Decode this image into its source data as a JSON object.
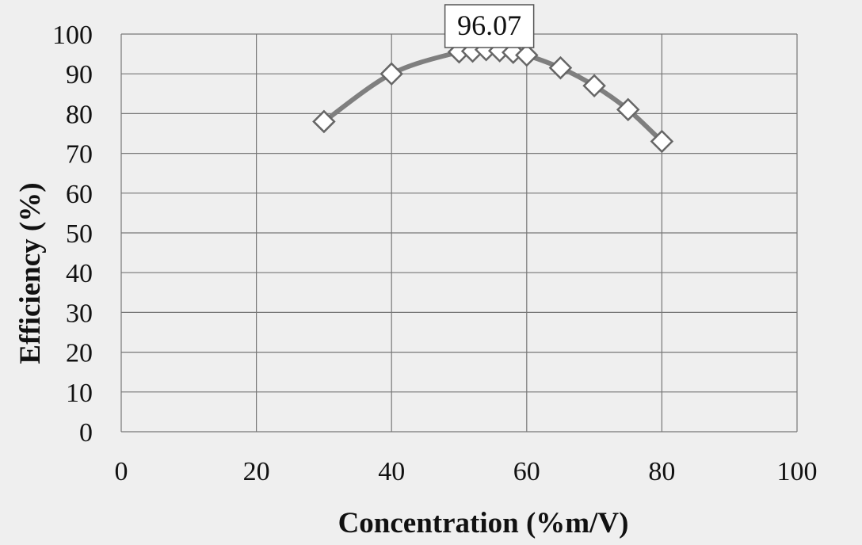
{
  "chart_data": {
    "type": "scatter",
    "xlabel": "Concentration (%m/V)",
    "ylabel": "Efficiency (%)",
    "xlim": [
      0,
      100
    ],
    "ylim": [
      0,
      100
    ],
    "x_ticks": [
      0,
      20,
      40,
      60,
      80,
      100
    ],
    "y_ticks": [
      0,
      10,
      20,
      30,
      40,
      50,
      60,
      70,
      80,
      90,
      100
    ],
    "grid": true,
    "marker": "open-diamond",
    "line": "smooth",
    "series": [
      {
        "points": [
          {
            "x": 30,
            "y": 78
          },
          {
            "x": 40,
            "y": 90
          },
          {
            "x": 50,
            "y": 95.5
          },
          {
            "x": 52,
            "y": 95.7
          },
          {
            "x": 54,
            "y": 96.07
          },
          {
            "x": 56,
            "y": 95.8
          },
          {
            "x": 58,
            "y": 95.4
          },
          {
            "x": 60,
            "y": 94.7
          },
          {
            "x": 65,
            "y": 91.5
          },
          {
            "x": 70,
            "y": 87
          },
          {
            "x": 75,
            "y": 81
          },
          {
            "x": 80,
            "y": 73
          }
        ]
      }
    ],
    "annotations": [
      {
        "text": "96.07",
        "x": 54,
        "y": 96.07
      }
    ]
  },
  "colors": {
    "background": "#efefef",
    "grid": "#777777",
    "series_line": "#7f7f7f",
    "marker_fill": "#ffffff",
    "marker_stroke": "#666666"
  }
}
